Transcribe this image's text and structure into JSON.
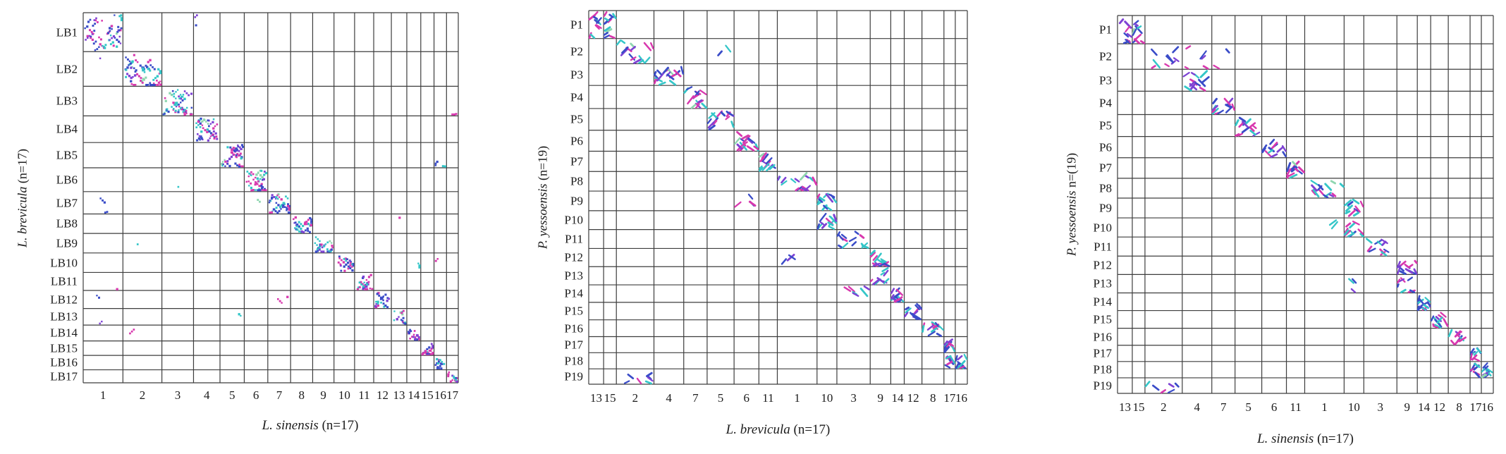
{
  "figure": {
    "background": "#ffffff",
    "grid_color": "#3d3d3d"
  },
  "chart_data": [
    {
      "type": "scatter",
      "subtype": "synteny-dot-plot",
      "title": "",
      "x_title": {
        "italic": "L. sinensis",
        "rest": " (n=17)"
      },
      "y_title": {
        "italic": "L. brevicula",
        "rest": " (n=17)"
      },
      "x_tick_labels": [
        "1",
        "2",
        "3",
        "4",
        "5",
        "6",
        "7",
        "8",
        "9",
        "10",
        "11",
        "12",
        "13",
        "14",
        "15",
        "16",
        "17"
      ],
      "y_tick_labels": [
        "LB1",
        "LB2",
        "LB3",
        "LB4",
        "LB5",
        "LB6",
        "LB7",
        "LB8",
        "LB9",
        "LB10",
        "LB11",
        "LB12",
        "LB13",
        "LB14",
        "LB15",
        "LB16",
        "LB17"
      ],
      "row_weights": [
        54,
        48,
        41,
        37,
        35,
        33,
        31,
        27,
        27,
        27,
        25,
        25,
        23,
        22,
        20,
        20,
        18
      ],
      "col_weights": [
        54,
        53,
        43,
        36,
        33,
        32,
        31,
        30,
        29,
        28,
        26,
        24,
        21,
        19,
        18,
        17,
        16
      ],
      "grid": true,
      "legend": false,
      "dot_style": "square",
      "dot_colors": [
        "#d838ae",
        "#34c6c8",
        "#3a4cc8",
        "#7e42d4",
        "#8fd6b0"
      ],
      "color_weights": [
        0.27,
        0.25,
        0.3,
        0.15,
        0.03
      ],
      "cells": [
        {
          "row": 1,
          "col": 1,
          "n": 40
        },
        {
          "row": 2,
          "col": 2,
          "n": 38
        },
        {
          "row": 3,
          "col": 3,
          "n": 34
        },
        {
          "row": 4,
          "col": 4,
          "n": 30
        },
        {
          "row": 5,
          "col": 5,
          "n": 26
        },
        {
          "row": 6,
          "col": 6,
          "n": 26
        },
        {
          "row": 7,
          "col": 7,
          "n": 22
        },
        {
          "row": 8,
          "col": 8,
          "n": 18
        },
        {
          "row": 9,
          "col": 9,
          "n": 16
        },
        {
          "row": 10,
          "col": 10,
          "n": 18
        },
        {
          "row": 11,
          "col": 11,
          "n": 16
        },
        {
          "row": 12,
          "col": 12,
          "n": 14
        },
        {
          "row": 13,
          "col": 13,
          "n": 12
        },
        {
          "row": 14,
          "col": 14,
          "n": 11
        },
        {
          "row": 15,
          "col": 15,
          "n": 10
        },
        {
          "row": 16,
          "col": 16,
          "n": 9
        },
        {
          "row": 17,
          "col": 17,
          "n": 8
        },
        {
          "row": 2,
          "col": 1,
          "n": 1
        },
        {
          "row": 1,
          "col": 4,
          "n": 2
        },
        {
          "row": 3,
          "col": 17,
          "n": 1
        },
        {
          "row": 5,
          "col": 16,
          "n": 2
        },
        {
          "row": 6,
          "col": 3,
          "n": 1
        },
        {
          "row": 7,
          "col": 1,
          "n": 2
        },
        {
          "row": 7,
          "col": 6,
          "n": 1
        },
        {
          "row": 8,
          "col": 13,
          "n": 1
        },
        {
          "row": 9,
          "col": 2,
          "n": 1
        },
        {
          "row": 10,
          "col": 14,
          "n": 1
        },
        {
          "row": 11,
          "col": 1,
          "n": 1
        },
        {
          "row": 12,
          "col": 1,
          "n": 1
        },
        {
          "row": 12,
          "col": 7,
          "n": 2
        },
        {
          "row": 13,
          "col": 1,
          "n": 1
        },
        {
          "row": 13,
          "col": 5,
          "n": 1
        },
        {
          "row": 14,
          "col": 2,
          "n": 1
        },
        {
          "row": 10,
          "col": 16,
          "n": 1
        }
      ]
    },
    {
      "type": "scatter",
      "subtype": "synteny-dot-plot",
      "title": "",
      "x_title": {
        "italic": "L. brevicula",
        "rest": " (n=17)"
      },
      "y_title": {
        "italic": "P. yessoensis",
        "rest": " (n=19)"
      },
      "x_tick_labels": [
        "13",
        "15",
        "2",
        "4",
        "7",
        "5",
        "6",
        "11",
        "1",
        "10",
        "3",
        "9",
        "14",
        "12",
        "8",
        "17",
        "16"
      ],
      "y_tick_labels": [
        "P1",
        "P2",
        "P3",
        "P4",
        "P5",
        "P6",
        "P7",
        "P8",
        "P9",
        "P10",
        "P11",
        "P12",
        "P13",
        "P14",
        "P15",
        "P16",
        "P17",
        "P18",
        "P19"
      ],
      "row_weights": [
        40,
        36,
        31,
        33,
        31,
        30,
        29,
        28,
        28,
        27,
        27,
        26,
        26,
        25,
        25,
        24,
        23,
        23,
        22
      ],
      "col_weights": [
        21,
        18,
        53,
        42,
        33,
        38,
        35,
        26,
        56,
        28,
        47,
        29,
        19,
        25,
        31,
        16,
        17
      ],
      "grid": true,
      "legend": false,
      "dot_style": "segment",
      "dot_colors": [
        "#d838ae",
        "#34c6c8",
        "#3a4cc8",
        "#7e42d4",
        "#8fd6b0"
      ],
      "color_weights": [
        0.27,
        0.25,
        0.3,
        0.15,
        0.03
      ],
      "cells": [
        {
          "row": 1,
          "col": 1,
          "n": 10
        },
        {
          "row": 1,
          "col": 2,
          "n": 12
        },
        {
          "row": 2,
          "col": 3,
          "n": 15
        },
        {
          "row": 3,
          "col": 4,
          "n": 17
        },
        {
          "row": 4,
          "col": 5,
          "n": 15
        },
        {
          "row": 5,
          "col": 6,
          "n": 14
        },
        {
          "row": 6,
          "col": 7,
          "n": 16
        },
        {
          "row": 7,
          "col": 8,
          "n": 14
        },
        {
          "row": 8,
          "col": 9,
          "n": 16
        },
        {
          "row": 9,
          "col": 10,
          "n": 13
        },
        {
          "row": 10,
          "col": 10,
          "n": 12
        },
        {
          "row": 11,
          "col": 11,
          "n": 13
        },
        {
          "row": 12,
          "col": 12,
          "n": 14
        },
        {
          "row": 13,
          "col": 12,
          "n": 9
        },
        {
          "row": 14,
          "col": 13,
          "n": 16
        },
        {
          "row": 15,
          "col": 14,
          "n": 12
        },
        {
          "row": 16,
          "col": 15,
          "n": 12
        },
        {
          "row": 17,
          "col": 16,
          "n": 10
        },
        {
          "row": 18,
          "col": 16,
          "n": 7
        },
        {
          "row": 18,
          "col": 17,
          "n": 10
        },
        {
          "row": 19,
          "col": 3,
          "n": 7
        },
        {
          "row": 14,
          "col": 11,
          "n": 6
        },
        {
          "row": 9,
          "col": 7,
          "n": 4
        },
        {
          "row": 2,
          "col": 6,
          "n": 2
        },
        {
          "row": 12,
          "col": 9,
          "n": 3
        }
      ]
    },
    {
      "type": "scatter",
      "subtype": "synteny-dot-plot",
      "title": "",
      "x_title": {
        "italic": "L. sinensis",
        "rest": " (n=17)"
      },
      "y_title": {
        "italic": "P. yessoensis",
        "rest": " n=(19)"
      },
      "x_tick_labels": [
        "13",
        "15",
        "2",
        "4",
        "7",
        "5",
        "6",
        "11",
        "1",
        "10",
        "3",
        "9",
        "14",
        "12",
        "8",
        "17",
        "16"
      ],
      "y_tick_labels": [
        "P1",
        "P2",
        "P3",
        "P4",
        "P5",
        "P6",
        "P7",
        "P8",
        "P9",
        "P10",
        "P11",
        "P12",
        "P13",
        "P14",
        "P15",
        "P16",
        "P17",
        "P18",
        "P19"
      ],
      "row_weights": [
        40,
        36,
        31,
        33,
        31,
        30,
        29,
        28,
        28,
        27,
        27,
        26,
        26,
        25,
        25,
        24,
        23,
        23,
        22
      ],
      "col_weights": [
        21,
        18,
        53,
        42,
        33,
        38,
        35,
        26,
        56,
        28,
        47,
        29,
        19,
        25,
        31,
        16,
        17
      ],
      "grid": true,
      "legend": false,
      "dot_style": "segment",
      "dot_colors": [
        "#d838ae",
        "#34c6c8",
        "#3a4cc8",
        "#7e42d4",
        "#8fd6b0"
      ],
      "color_weights": [
        0.27,
        0.25,
        0.3,
        0.15,
        0.03
      ],
      "cells": [
        {
          "row": 1,
          "col": 1,
          "n": 9
        },
        {
          "row": 1,
          "col": 2,
          "n": 10
        },
        {
          "row": 2,
          "col": 3,
          "n": 9
        },
        {
          "row": 2,
          "col": 4,
          "n": 5
        },
        {
          "row": 3,
          "col": 4,
          "n": 14
        },
        {
          "row": 4,
          "col": 5,
          "n": 13
        },
        {
          "row": 5,
          "col": 6,
          "n": 14
        },
        {
          "row": 6,
          "col": 7,
          "n": 13
        },
        {
          "row": 7,
          "col": 8,
          "n": 12
        },
        {
          "row": 8,
          "col": 9,
          "n": 14
        },
        {
          "row": 9,
          "col": 10,
          "n": 11
        },
        {
          "row": 10,
          "col": 10,
          "n": 12
        },
        {
          "row": 11,
          "col": 11,
          "n": 11
        },
        {
          "row": 12,
          "col": 12,
          "n": 13
        },
        {
          "row": 13,
          "col": 12,
          "n": 8
        },
        {
          "row": 14,
          "col": 13,
          "n": 14
        },
        {
          "row": 15,
          "col": 14,
          "n": 11
        },
        {
          "row": 16,
          "col": 15,
          "n": 10
        },
        {
          "row": 17,
          "col": 16,
          "n": 9
        },
        {
          "row": 18,
          "col": 16,
          "n": 6
        },
        {
          "row": 18,
          "col": 17,
          "n": 10
        },
        {
          "row": 19,
          "col": 3,
          "n": 6
        },
        {
          "row": 2,
          "col": 5,
          "n": 2
        },
        {
          "row": 13,
          "col": 10,
          "n": 3
        },
        {
          "row": 10,
          "col": 9,
          "n": 2
        }
      ]
    }
  ]
}
